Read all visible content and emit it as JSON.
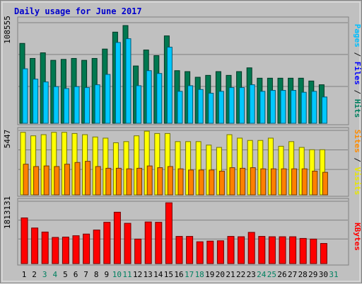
{
  "chart_data": {
    "type": "bar",
    "title": "Daily usage for June 2017",
    "days": [
      "1",
      "2",
      "3",
      "4",
      "5",
      "6",
      "7",
      "8",
      "9",
      "10",
      "11",
      "12",
      "13",
      "14",
      "15",
      "16",
      "17",
      "18",
      "19",
      "20",
      "21",
      "22",
      "23",
      "24",
      "25",
      "26",
      "27",
      "28",
      "29",
      "30",
      "31"
    ],
    "weekend_days": [
      "3",
      "4",
      "10",
      "11",
      "17",
      "18",
      "24",
      "25",
      "31"
    ],
    "panels": [
      {
        "id": "hits-files",
        "ymax_label": "108555",
        "ymax": 108555,
        "right_label_parts": [
          {
            "text": "Pages",
            "color": "#00c0ff"
          },
          {
            "text": " / ",
            "color": "#1a1a1a"
          },
          {
            "text": "Files",
            "color": "#0000ff"
          },
          {
            "text": " / ",
            "color": "#1a1a1a"
          },
          {
            "text": "Hits",
            "color": "#008060"
          }
        ],
        "series": [
          {
            "name": "Hits",
            "color": "#007850",
            "values": [
              85000,
              69000,
              75000,
              67000,
              68000,
              69000,
              67000,
              69000,
              79000,
              97000,
              104000,
              61000,
              78000,
              72000,
              93000,
              56000,
              55000,
              49000,
              51000,
              55000,
              51000,
              55000,
              59000,
              48000,
              48000,
              48000,
              48000,
              48000,
              45000,
              41000
            ]
          },
          {
            "name": "Files",
            "color": "#00c8ff",
            "values": [
              58000,
              47000,
              44000,
              39000,
              37000,
              39000,
              38000,
              41000,
              52000,
              86000,
              90000,
              40000,
              56000,
              53000,
              81000,
              34000,
              40000,
              36000,
              32000,
              34000,
              38000,
              38000,
              41000,
              34000,
              35000,
              35000,
              35000,
              33000,
              34000,
              28000
            ]
          },
          {
            "name": "Pages",
            "color": "#0000ff",
            "values": [
              0,
              0,
              0,
              0,
              0,
              0,
              0,
              0,
              0,
              0,
              0,
              0,
              0,
              0,
              0,
              0,
              0,
              0,
              0,
              0,
              0,
              0,
              0,
              0,
              0,
              0,
              0,
              0,
              0,
              0
            ]
          }
        ]
      },
      {
        "id": "sites-visits",
        "ymax_label": "5447",
        "ymax": 5447,
        "right_label_parts": [
          {
            "text": "Sites",
            "color": "#ff8c00"
          },
          {
            "text": " / ",
            "color": "#1a1a1a"
          },
          {
            "text": "Visits",
            "color": "#e8e800"
          }
        ],
        "series": [
          {
            "name": "Visits",
            "color": "#ffff00",
            "values": [
              5400,
              5100,
              5200,
              5400,
              5400,
              5300,
              5200,
              5000,
              4900,
              4500,
              4600,
              5100,
              5500,
              5300,
              5300,
              4600,
              4600,
              4600,
              4300,
              4100,
              5200,
              4900,
              4700,
              4700,
              4900,
              4200,
              4600,
              4100,
              3900,
              3900
            ]
          },
          {
            "name": "Sites",
            "color": "#ff8000",
            "values": [
              2650,
              2450,
              2500,
              2450,
              2650,
              2800,
              2900,
              2450,
              2300,
              2300,
              2250,
              2300,
              2500,
              2350,
              2450,
              2250,
              2150,
              2150,
              2150,
              2050,
              2350,
              2300,
              2350,
              2250,
              2250,
              2250,
              2250,
              2250,
              2050,
              1950
            ]
          }
        ]
      },
      {
        "id": "kbytes",
        "ymax_label": "1813131",
        "ymax": 1813131,
        "right_label_parts": [
          {
            "text": "KBytes",
            "color": "#ff0000"
          }
        ],
        "series": [
          {
            "name": "KBytes",
            "color": "#ff0000",
            "values": [
              1360000,
              1060000,
              940000,
              780000,
              790000,
              830000,
              880000,
              1000000,
              1230000,
              1530000,
              1200000,
              730000,
              1240000,
              1230000,
              1810000,
              810000,
              810000,
              650000,
              670000,
              680000,
              810000,
              800000,
              930000,
              810000,
              800000,
              800000,
              800000,
              750000,
              730000,
              600000
            ]
          }
        ]
      }
    ]
  }
}
